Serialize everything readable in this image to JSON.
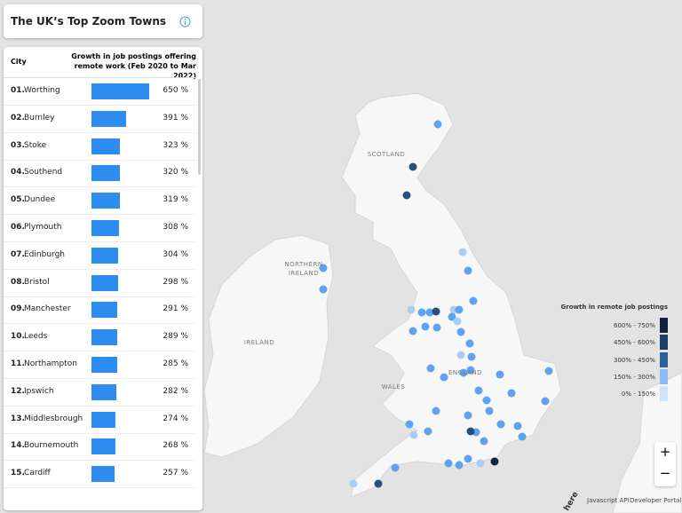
{
  "header": {
    "title": "The UK’s Top Zoom Towns"
  },
  "table": {
    "columns": [
      "City",
      "Growth in job postings offering remote work (Feb 2020 to Mar 2022)"
    ],
    "rows": [
      {
        "rank": "01.",
        "city": "Worthing",
        "value": 650,
        "value_label": "650 %"
      },
      {
        "rank": "02.",
        "city": "Burnley",
        "value": 391,
        "value_label": "391 %"
      },
      {
        "rank": "03.",
        "city": "Stoke",
        "value": 323,
        "value_label": "323 %"
      },
      {
        "rank": "04.",
        "city": "Southend",
        "value": 320,
        "value_label": "320 %"
      },
      {
        "rank": "05.",
        "city": "Dundee",
        "value": 319,
        "value_label": "319 %"
      },
      {
        "rank": "06.",
        "city": "Plymouth",
        "value": 308,
        "value_label": "308 %"
      },
      {
        "rank": "07.",
        "city": "Edinburgh",
        "value": 304,
        "value_label": "304 %"
      },
      {
        "rank": "08.",
        "city": "Bristol",
        "value": 298,
        "value_label": "298 %"
      },
      {
        "rank": "09.",
        "city": "Manchester",
        "value": 291,
        "value_label": "291 %"
      },
      {
        "rank": "10.",
        "city": "Leeds",
        "value": 289,
        "value_label": "289 %"
      },
      {
        "rank": "11.",
        "city": "Northampton",
        "value": 285,
        "value_label": "285 %"
      },
      {
        "rank": "12.",
        "city": "Ipswich",
        "value": 282,
        "value_label": "282 %"
      },
      {
        "rank": "13.",
        "city": "Middlesbrough",
        "value": 274,
        "value_label": "274 %"
      },
      {
        "rank": "14.",
        "city": "Bournemouth",
        "value": 268,
        "value_label": "268 %"
      },
      {
        "rank": "15.",
        "city": "Cardiff",
        "value": 257,
        "value_label": "257 %"
      }
    ],
    "bar_color": "#2d8cf0",
    "xlim": [
      0,
      650
    ]
  },
  "legend": {
    "title": "Growth in remote job postings",
    "items": [
      {
        "label": "600% - 750%",
        "color": "#0d2240"
      },
      {
        "label": "450% - 600%",
        "color": "#1d3c66"
      },
      {
        "label": "300% - 450%",
        "color": "#2f5f99"
      },
      {
        "label": "150% - 300%",
        "color": "#8cbcf2"
      },
      {
        "label": "0% - 150%",
        "color": "#cfe4fb"
      }
    ]
  },
  "map": {
    "labels": [
      "SCOTLAND",
      "NORTHERN IRELAND",
      "IRELAND",
      "WALES",
      "ENGLAND"
    ],
    "logo": "here",
    "zoom_in": "+",
    "zoom_out": "−",
    "links": [
      "Javascript API",
      "Developer Portal"
    ]
  }
}
